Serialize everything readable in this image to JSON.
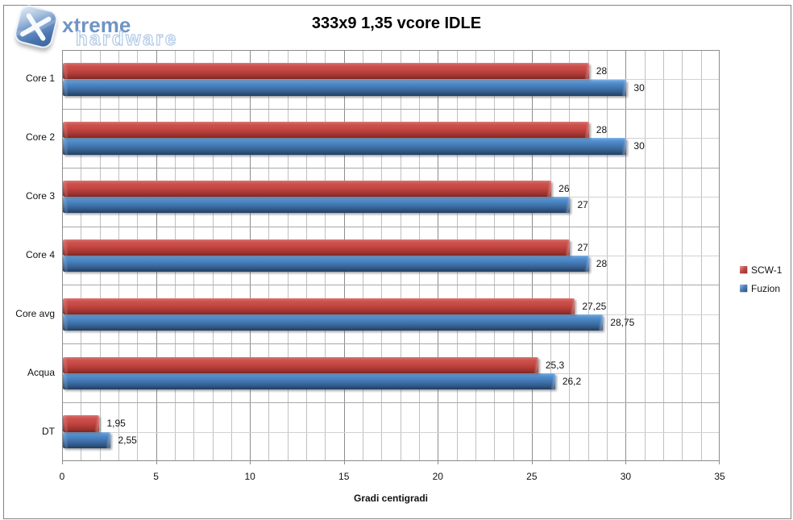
{
  "logo": {
    "brand_top": "xtreme",
    "brand_bottom": "hardware",
    "icon": "xtremehardware-x-logo"
  },
  "chart_data": {
    "type": "bar",
    "orientation": "horizontal",
    "title": "333x9 1,35 vcore IDLE",
    "xlabel": "Gradi centigradi",
    "categories": [
      "Core 1",
      "Core 2",
      "Core 3",
      "Core 4",
      "Core avg",
      "Acqua",
      "DT"
    ],
    "series": [
      {
        "name": "SCW-1",
        "color": "#c0504d",
        "values": [
          28,
          28,
          26,
          27,
          27.25,
          25.3,
          1.95
        ],
        "labels": [
          "28",
          "28",
          "26",
          "27",
          "27,25",
          "25,3",
          "1,95"
        ]
      },
      {
        "name": "Fuzion",
        "color": "#4f81bd",
        "values": [
          30,
          30,
          27,
          28,
          28.75,
          26.2,
          2.55
        ],
        "labels": [
          "30",
          "30",
          "27",
          "28",
          "28,75",
          "26,2",
          "2,55"
        ]
      }
    ],
    "xlim": [
      0,
      35
    ],
    "x_major_ticks": [
      0,
      5,
      10,
      15,
      20,
      25,
      30,
      35
    ],
    "x_minor_unit": 1,
    "grid": true,
    "legend_position": "right"
  }
}
